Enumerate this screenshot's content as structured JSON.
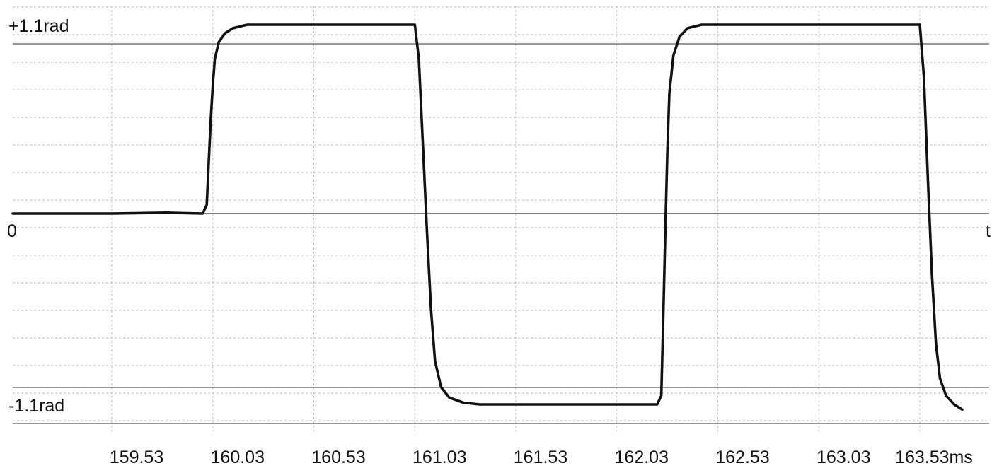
{
  "chart_data": {
    "type": "line",
    "title": "",
    "xlabel": "",
    "ylabel": "",
    "x_unit": "ms",
    "y_unit": "rad",
    "x_ticks": [
      159.53,
      160.03,
      160.53,
      161.03,
      161.53,
      162.03,
      162.53,
      163.03,
      163.53
    ],
    "x_tick_labels": [
      "159.53",
      "160.03",
      "160.53",
      "161.03",
      "161.53",
      "162.03",
      "162.53",
      "163.03",
      "163.53ms"
    ],
    "xlim": [
      159.53,
      163.53
    ],
    "ylim": [
      -1.1,
      1.1
    ],
    "y_tick_labels": {
      "top": "+1.1rad",
      "zero": "0",
      "bottom": "-1.1rad"
    },
    "time_axis_label": "t",
    "grid": true,
    "series": [
      {
        "points": [
          [
            159.53,
            0.0
          ],
          [
            159.8,
            0.005
          ],
          [
            159.98,
            0.0
          ],
          [
            160.0,
            0.05
          ],
          [
            160.01,
            0.3
          ],
          [
            160.02,
            0.55
          ],
          [
            160.03,
            0.75
          ],
          [
            160.04,
            0.9
          ],
          [
            160.06,
            1.0
          ],
          [
            160.09,
            1.05
          ],
          [
            160.13,
            1.08
          ],
          [
            160.2,
            1.1
          ],
          [
            160.6,
            1.1
          ],
          [
            161.0,
            1.1
          ],
          [
            161.03,
            1.1
          ],
          [
            161.05,
            0.9
          ],
          [
            161.07,
            0.4
          ],
          [
            161.09,
            -0.1
          ],
          [
            161.11,
            -0.55
          ],
          [
            161.13,
            -0.85
          ],
          [
            161.16,
            -1.0
          ],
          [
            161.2,
            -1.06
          ],
          [
            161.27,
            -1.09
          ],
          [
            161.35,
            -1.1
          ],
          [
            161.9,
            -1.1
          ],
          [
            162.23,
            -1.1
          ],
          [
            162.25,
            -1.05
          ],
          [
            162.26,
            -0.6
          ],
          [
            162.27,
            -0.1
          ],
          [
            162.28,
            0.35
          ],
          [
            162.29,
            0.7
          ],
          [
            162.31,
            0.92
          ],
          [
            162.34,
            1.03
          ],
          [
            162.38,
            1.08
          ],
          [
            162.45,
            1.1
          ],
          [
            163.0,
            1.1
          ],
          [
            163.5,
            1.1
          ],
          [
            163.53,
            1.1
          ],
          [
            163.55,
            0.8
          ],
          [
            163.57,
            0.2
          ],
          [
            163.59,
            -0.35
          ],
          [
            163.61,
            -0.75
          ],
          [
            163.63,
            -0.95
          ],
          [
            163.66,
            -1.05
          ],
          [
            163.7,
            -1.1
          ],
          [
            163.74,
            -1.13
          ]
        ]
      }
    ]
  }
}
